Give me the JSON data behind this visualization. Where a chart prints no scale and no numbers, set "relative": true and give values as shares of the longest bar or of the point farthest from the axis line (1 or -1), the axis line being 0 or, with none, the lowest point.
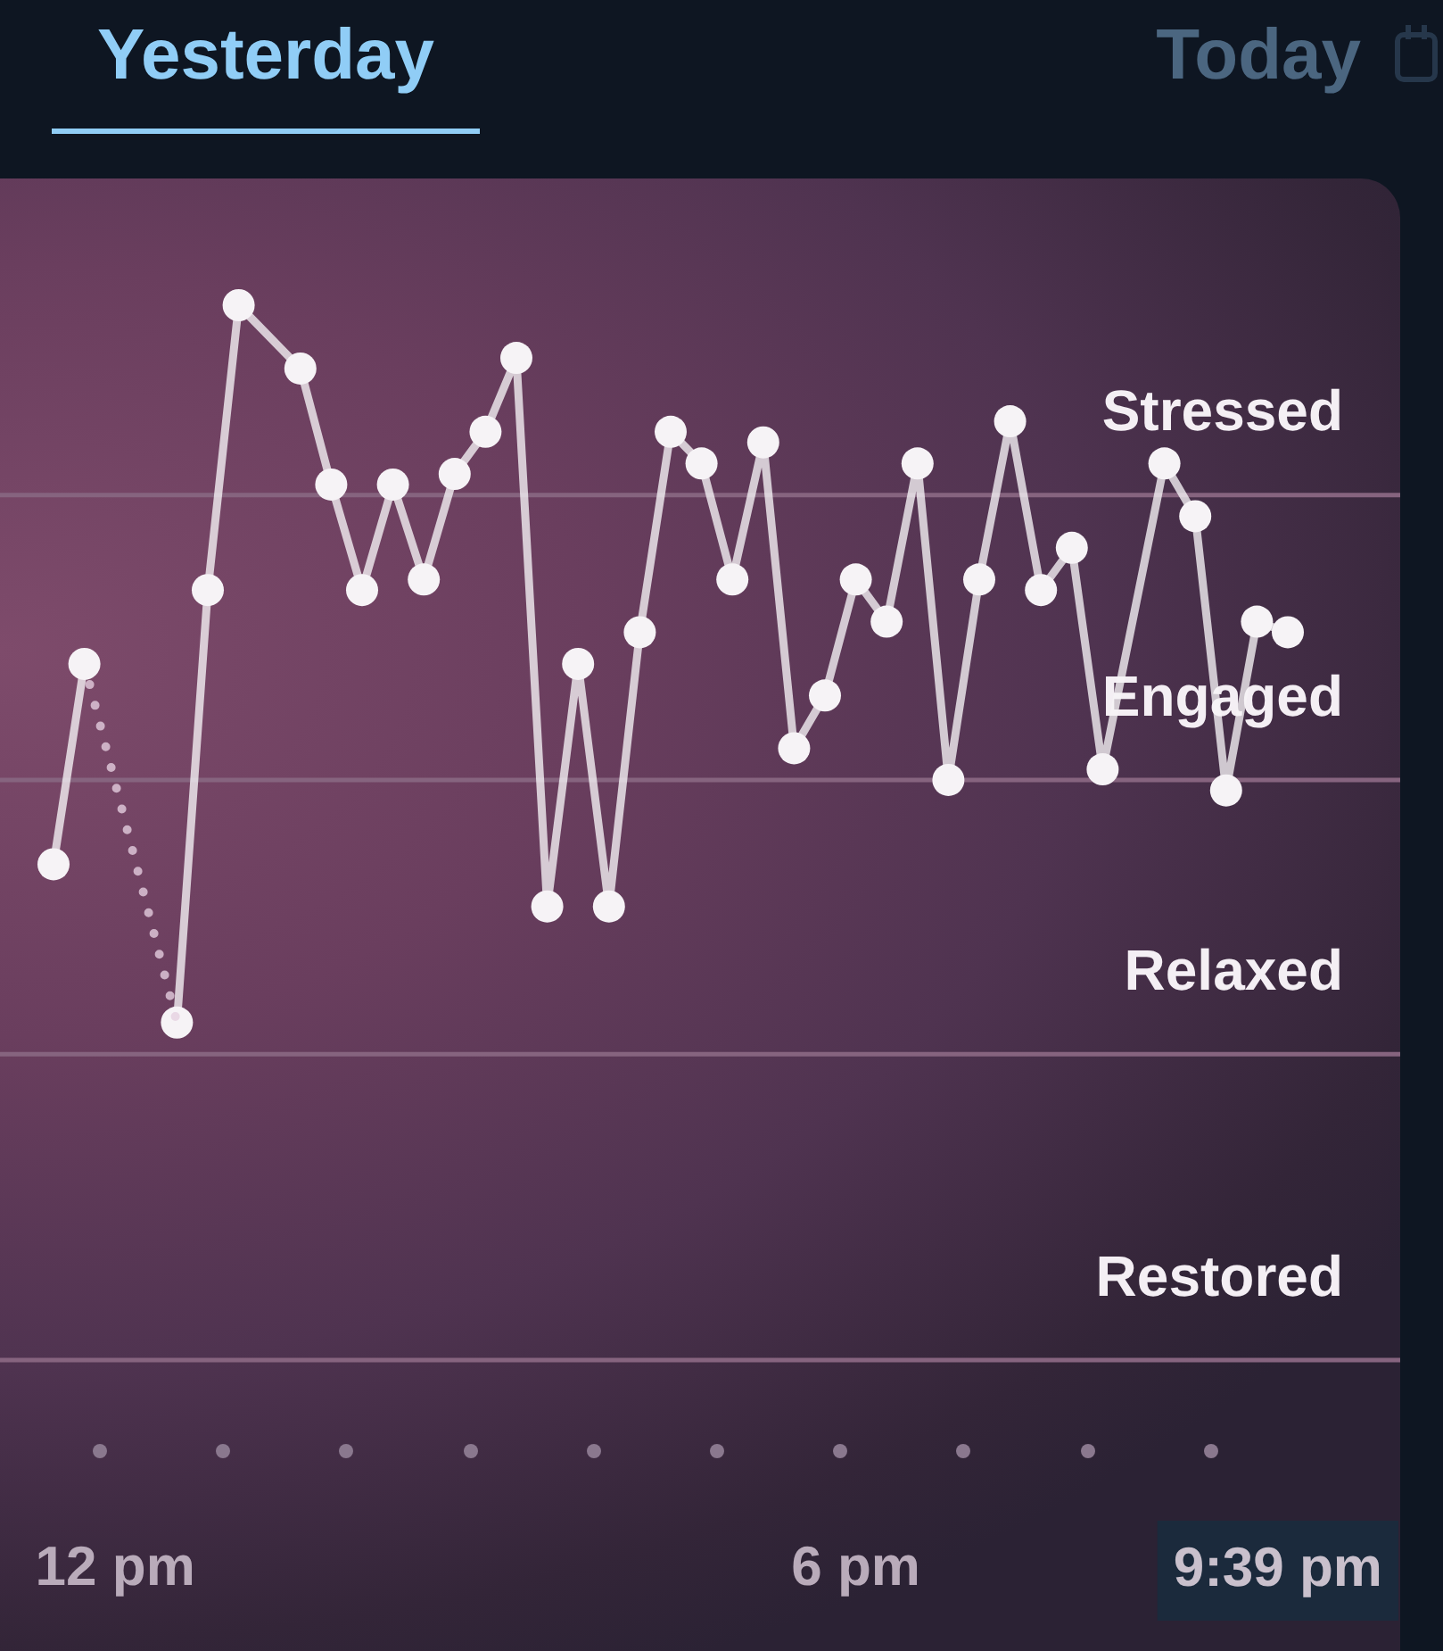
{
  "chart_data": {
    "type": "line",
    "relative": true,
    "marker": "circle",
    "line_style": "solid",
    "annotations": [
      "Yesterday",
      "Today",
      "9:39 pm"
    ],
    "categories": [
      null,
      null,
      "12 pm",
      null,
      null,
      null,
      null,
      null,
      null,
      null,
      null,
      null,
      null,
      null,
      null,
      null,
      null,
      null,
      null,
      null,
      null,
      null,
      null,
      null,
      null,
      null,
      "6 pm",
      null,
      null,
      null,
      null,
      null,
      null,
      null,
      null,
      null,
      null,
      null,
      null,
      null,
      null
    ],
    "series": [
      {
        "color": "#f6f3f6",
        "values": [
          0.47,
          0.66,
          null,
          null,
          null,
          null,
          null,
          null,
          null,
          null,
          null,
          null,
          null,
          null,
          null,
          null,
          null,
          null,
          null,
          null,
          null,
          null,
          null,
          null,
          null,
          null,
          null,
          null,
          null,
          null,
          null,
          null,
          null,
          null,
          null,
          null,
          null,
          null,
          null,
          null,
          null
        ]
      },
      {
        "color": "#e6cfe0",
        "line_style": "dotted",
        "marker": "none",
        "values": [
          null,
          0.66,
          null,
          null,
          0.32,
          null,
          null,
          null,
          null,
          null,
          null,
          null,
          null,
          null,
          null,
          null,
          null,
          null,
          null,
          null,
          null,
          null,
          null,
          null,
          null,
          null,
          null,
          null,
          null,
          null,
          null,
          null,
          null,
          null,
          null,
          null,
          null,
          null,
          null,
          null,
          null
        ]
      },
      {
        "color": "#f6f3f6",
        "values": [
          null,
          null,
          null,
          null,
          0.32,
          0.73,
          1,
          null,
          0.94,
          0.83,
          0.73,
          0.83,
          0.74,
          0.84,
          0.88,
          0.95,
          0.43,
          0.66,
          0.43,
          0.69,
          0.88,
          0.85,
          0.74,
          0.87,
          0.58,
          0.63,
          0.74,
          0.7,
          0.85,
          0.55,
          0.74,
          0.89,
          0.73,
          0.77,
          0.56,
          null,
          0.85,
          0.8,
          0.54,
          0.7,
          0.69
        ]
      }
    ],
    "ref_lines": [
      {
        "axis": "y",
        "value": 0.82,
        "label": "Stressed",
        "color": "#86647f"
      },
      {
        "axis": "y",
        "value": 0.55,
        "label": "Engaged",
        "color": "#86647f"
      },
      {
        "axis": "y",
        "value": 0.29,
        "label": "Relaxed",
        "color": "#86647f"
      },
      {
        "axis": "y",
        "value": 0,
        "label": "Restored",
        "color": "#86647f"
      }
    ]
  }
}
